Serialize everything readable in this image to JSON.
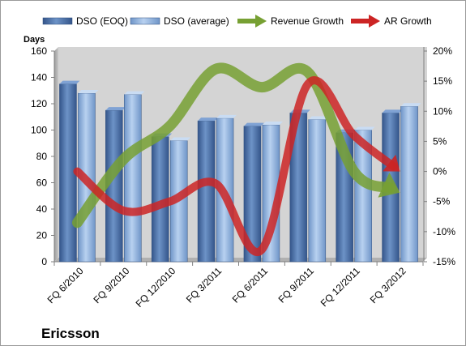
{
  "chart_data": {
    "type": "bar",
    "company": "Ericsson",
    "y_left_label": "Days",
    "categories": [
      "FQ 6/2010",
      "FQ 9/2010",
      "FQ 12/2010",
      "FQ 3/2011",
      "FQ 6/2011",
      "FQ 9/2011",
      "FQ 12/2011",
      "FQ 3/2012"
    ],
    "ylim_left": [
      0,
      160
    ],
    "yticks_left": [
      0,
      20,
      40,
      60,
      80,
      100,
      120,
      140,
      160
    ],
    "ylim_right": [
      -15,
      20
    ],
    "yticks_right": [
      -15,
      -10,
      -5,
      0,
      5,
      10,
      15,
      20
    ],
    "yticks_right_labels": [
      "-15%",
      "-10%",
      "-5%",
      "0%",
      "5%",
      "10%",
      "15%",
      "20%"
    ],
    "grid": false,
    "legend_position": "top",
    "series": [
      {
        "name": "DSO (EOQ)",
        "kind": "bar",
        "axis": "left",
        "color": "#4a6fa5",
        "values": [
          135,
          115,
          95,
          107,
          103,
          113,
          98,
          113
        ]
      },
      {
        "name": "DSO (average)",
        "kind": "bar",
        "axis": "left",
        "color": "#8fb1dd",
        "values": [
          128,
          127,
          92,
          109,
          104,
          108,
          100,
          118
        ]
      },
      {
        "name": "Revenue Growth",
        "kind": "line-arrow",
        "axis": "right",
        "color": "#77a033",
        "values": [
          -8.5,
          2,
          7.5,
          17,
          14,
          16.5,
          0,
          -3.5
        ]
      },
      {
        "name": "AR Growth",
        "kind": "line-arrow",
        "axis": "right",
        "color": "#cc2424",
        "values": [
          0,
          -6.5,
          -5,
          -2,
          -13,
          14.5,
          6,
          0
        ]
      }
    ]
  }
}
